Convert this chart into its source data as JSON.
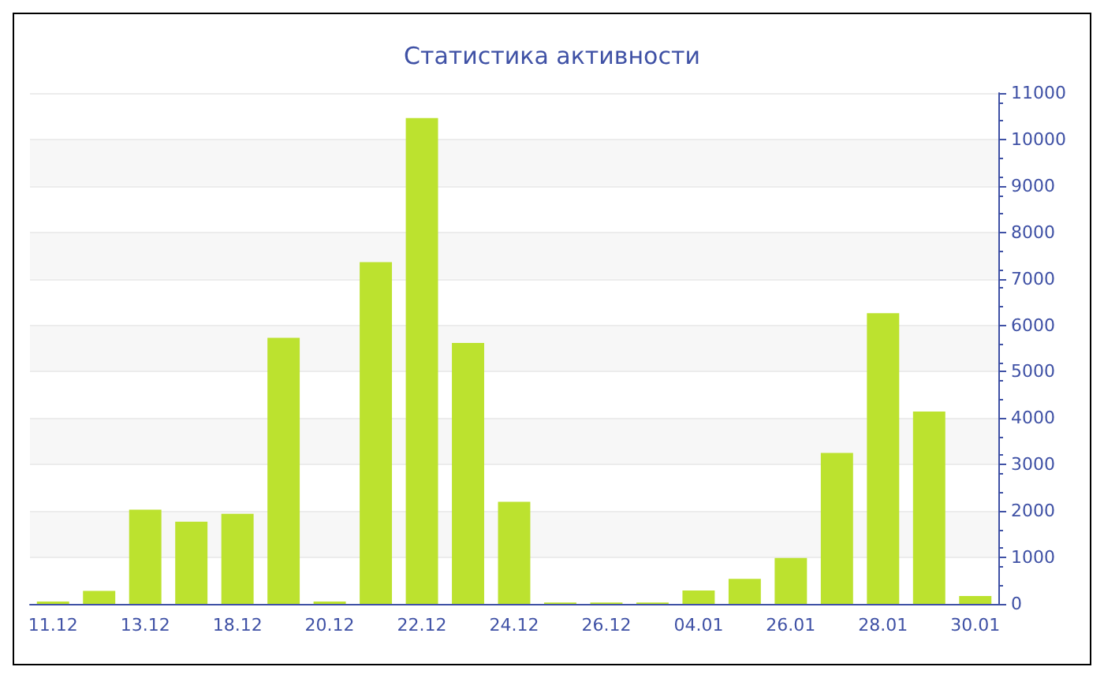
{
  "chart_data": {
    "type": "bar",
    "title": "Статистика активности",
    "categories": [
      "11.12",
      null,
      "13.12",
      null,
      "18.12",
      null,
      "20.12",
      null,
      "22.12",
      null,
      "24.12",
      null,
      "26.12",
      null,
      "04.01",
      null,
      "26.01",
      null,
      "28.01",
      null,
      "30.01"
    ],
    "values": [
      50,
      280,
      2030,
      1770,
      1940,
      5730,
      50,
      7360,
      10460,
      5620,
      2200,
      30,
      30,
      30,
      290,
      540,
      990,
      3250,
      6260,
      4140,
      170
    ],
    "color": "#bce22f",
    "ylim": [
      0,
      11000
    ],
    "yticks": [
      0,
      1000,
      2000,
      3000,
      4000,
      5000,
      6000,
      7000,
      8000,
      9000,
      10000,
      11000
    ],
    "grid": true
  }
}
